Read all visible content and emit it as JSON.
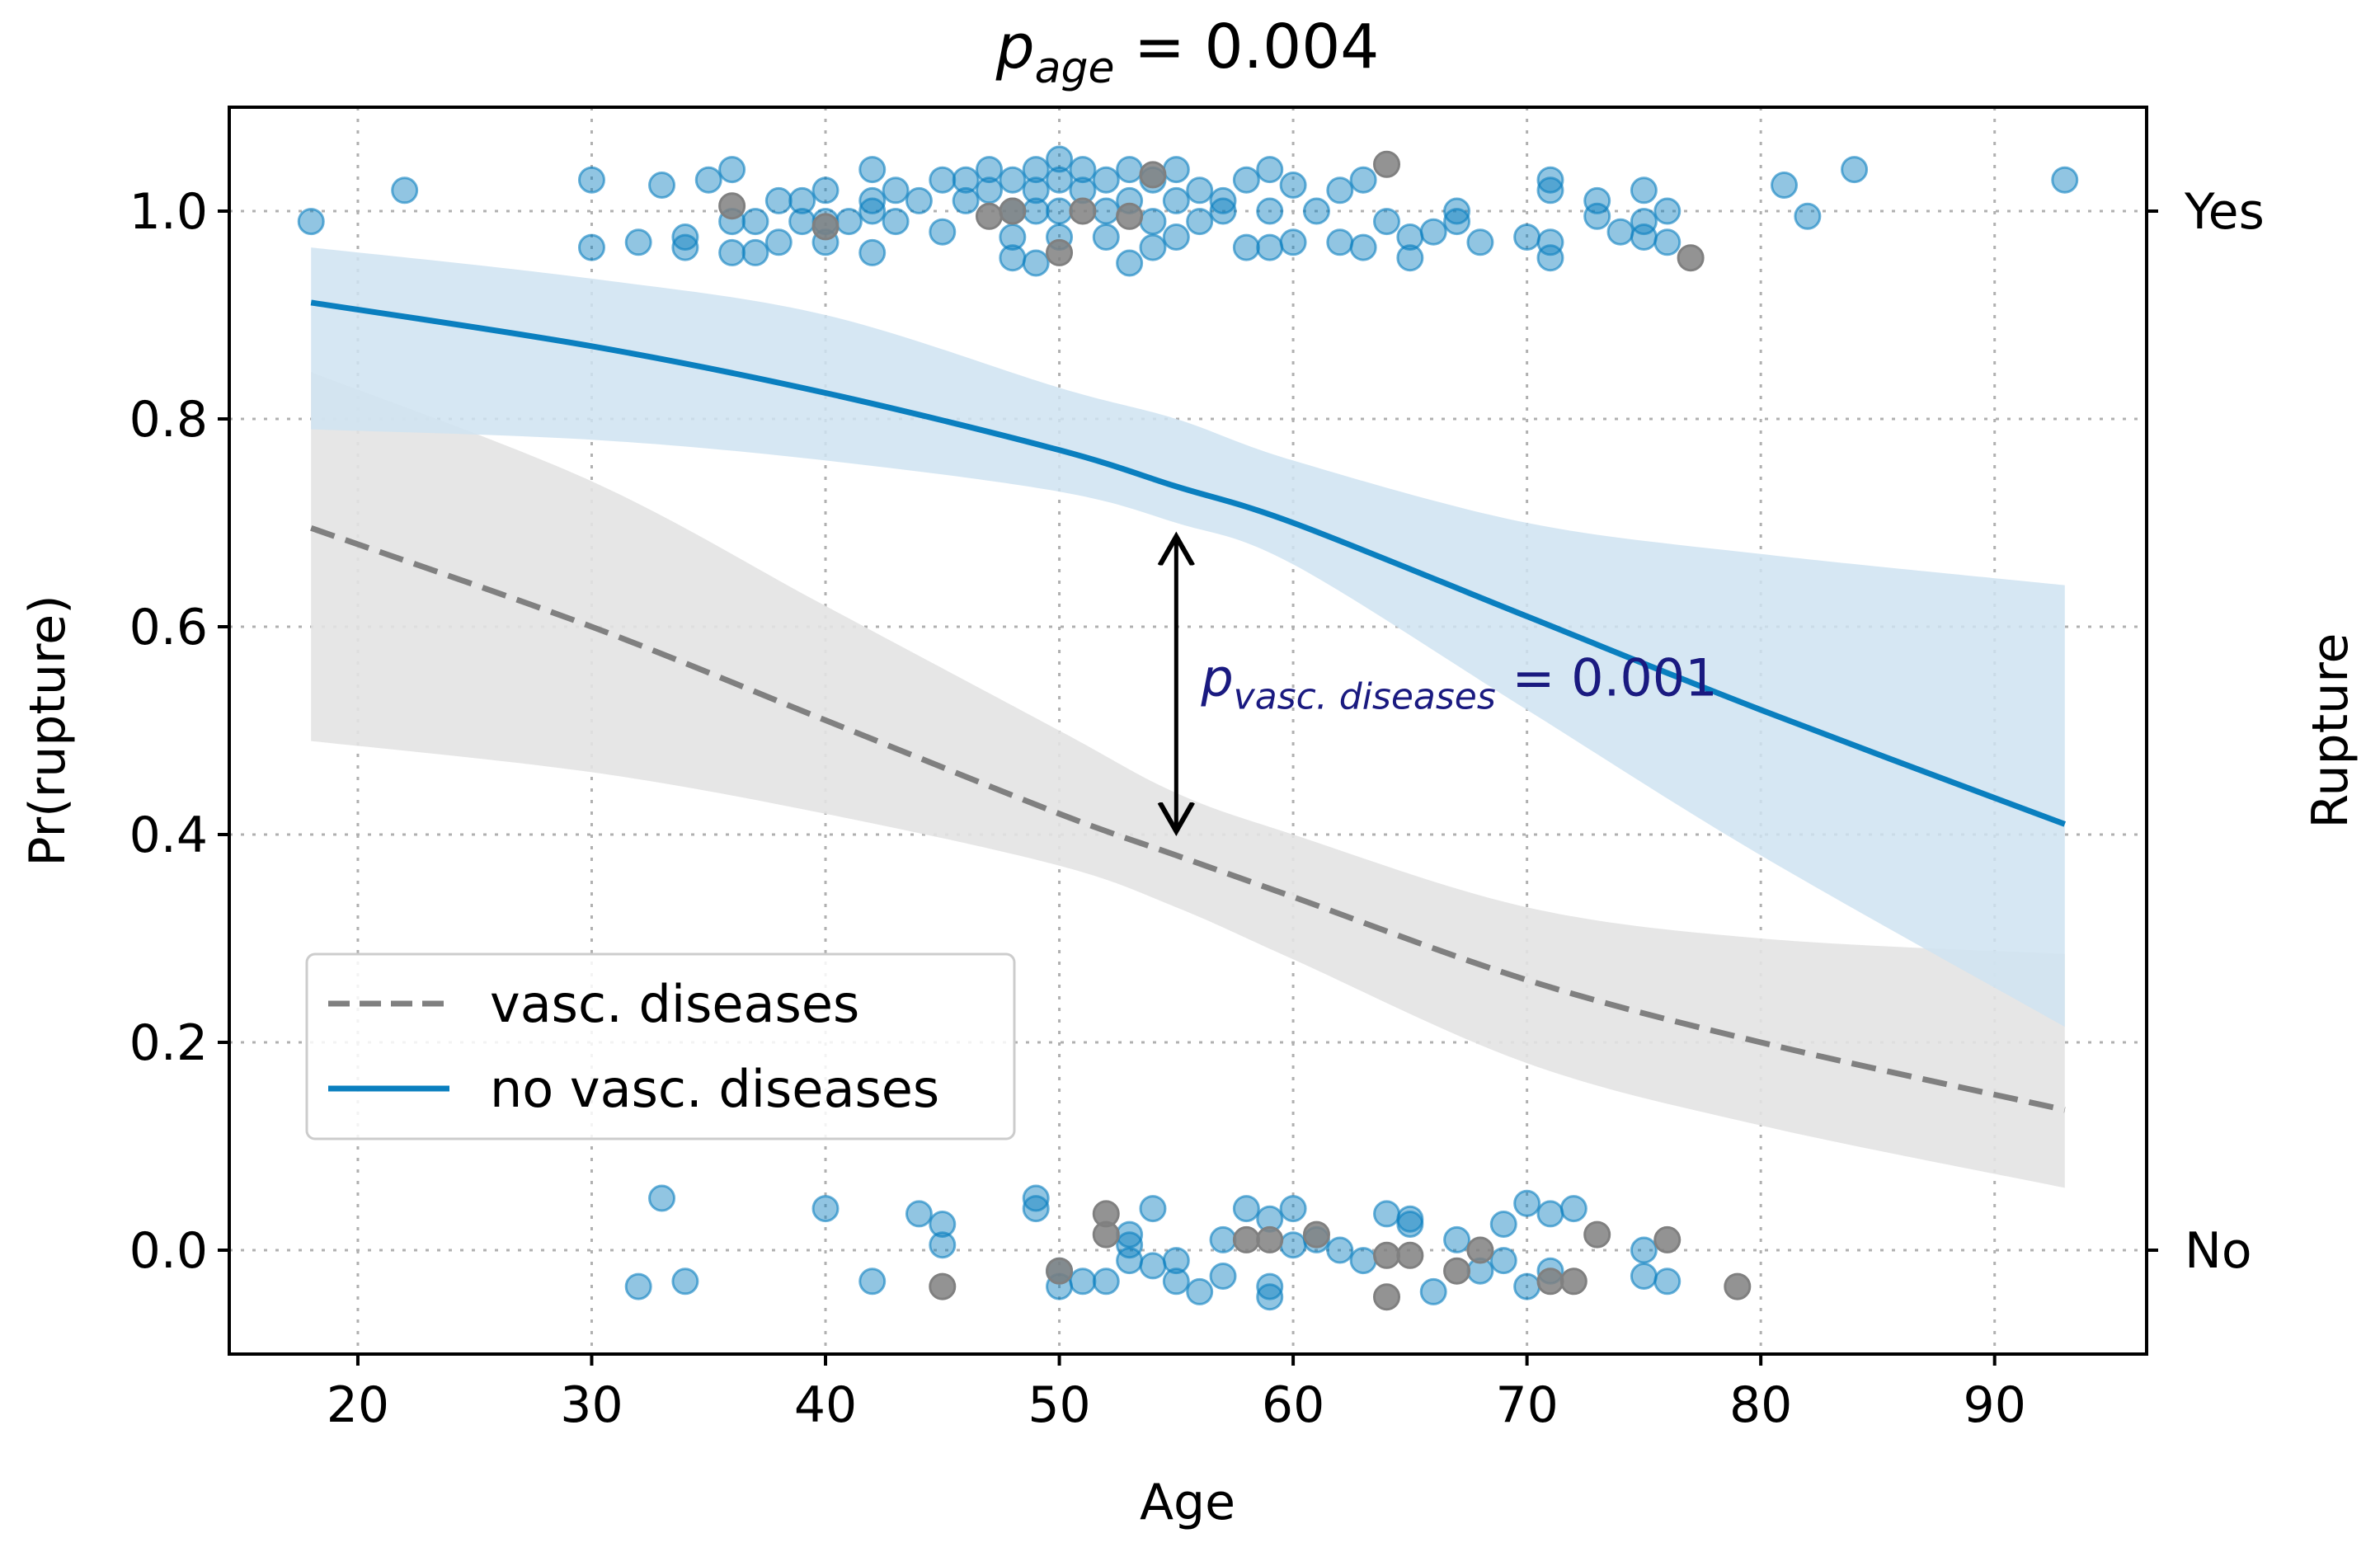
{
  "chart_data": {
    "type": "scatter",
    "title": {
      "symbol": "p",
      "subscript": "age",
      "rest": " = 0.004"
    },
    "xlabel": "Age",
    "ylabel": "Pr(rupture)",
    "y2label": "Rupture",
    "xlim": [
      14.5,
      96.5
    ],
    "ylim": [
      -0.1,
      1.1
    ],
    "xticks": [
      20,
      30,
      40,
      50,
      60,
      70,
      80,
      90
    ],
    "yticks": [
      0.0,
      0.2,
      0.4,
      0.6,
      0.8,
      1.0
    ],
    "ytick_labels": [
      "0.0",
      "0.2",
      "0.4",
      "0.6",
      "0.8",
      "1.0"
    ],
    "y2ticks": [
      {
        "value": 1.0,
        "label": "Yes"
      },
      {
        "value": 0.0,
        "label": "No"
      }
    ],
    "grid": true,
    "legend_position": "lower-left",
    "colors": {
      "no_vasc": "#0a7fbf",
      "vasc": "#808080",
      "no_vasc_band": "#cfe3f1",
      "vasc_band": "#e3e3e3"
    },
    "series": [
      {
        "name": "vasc. diseases",
        "style": "dashed",
        "x": [
          18,
          30,
          40,
          50,
          55,
          60,
          70,
          80,
          93
        ],
        "values": [
          0.695,
          0.6,
          0.51,
          0.42,
          0.38,
          0.34,
          0.26,
          0.2,
          0.135
        ],
        "ci_lower": [
          0.49,
          0.46,
          0.42,
          0.37,
          0.33,
          0.28,
          0.18,
          0.12,
          0.06
        ],
        "ci_upper": [
          0.845,
          0.74,
          0.62,
          0.5,
          0.44,
          0.4,
          0.33,
          0.3,
          0.285
        ]
      },
      {
        "name": "no vasc. diseases",
        "style": "solid",
        "x": [
          18,
          30,
          40,
          50,
          55,
          60,
          70,
          80,
          93
        ],
        "values": [
          0.912,
          0.87,
          0.825,
          0.77,
          0.735,
          0.7,
          0.61,
          0.52,
          0.41
        ],
        "ci_lower": [
          0.79,
          0.78,
          0.76,
          0.73,
          0.7,
          0.66,
          0.52,
          0.38,
          0.215
        ],
        "ci_upper": [
          0.965,
          0.935,
          0.9,
          0.83,
          0.8,
          0.76,
          0.7,
          0.67,
          0.64
        ]
      }
    ],
    "annotation": {
      "symbol": "p",
      "subscript": "vasc. diseases",
      "rest": " = 0.001",
      "x": 55,
      "y_from": 0.69,
      "y_to": 0.4
    },
    "points_no_vasc": [
      [
        18,
        0.99
      ],
      [
        22,
        1.02
      ],
      [
        30,
        1.03
      ],
      [
        30,
        0.965
      ],
      [
        32,
        0.97
      ],
      [
        33,
        1.025
      ],
      [
        34,
        0.975
      ],
      [
        34,
        0.965
      ],
      [
        35,
        1.03
      ],
      [
        36,
        1.04
      ],
      [
        36,
        0.99
      ],
      [
        36,
        0.96
      ],
      [
        37,
        0.96
      ],
      [
        37,
        0.99
      ],
      [
        38,
        1.01
      ],
      [
        38,
        0.97
      ],
      [
        39,
        1.01
      ],
      [
        39,
        0.99
      ],
      [
        40,
        1.02
      ],
      [
        40,
        0.97
      ],
      [
        40,
        0.99
      ],
      [
        41,
        0.99
      ],
      [
        42,
        1.04
      ],
      [
        42,
        1.01
      ],
      [
        42,
        1.0
      ],
      [
        42,
        0.96
      ],
      [
        43,
        1.02
      ],
      [
        43,
        0.99
      ],
      [
        44,
        1.01
      ],
      [
        45,
        1.03
      ],
      [
        45,
        0.98
      ],
      [
        46,
        1.03
      ],
      [
        46,
        1.01
      ],
      [
        47,
        1.04
      ],
      [
        47,
        1.02
      ],
      [
        48,
        1.0
      ],
      [
        48,
        0.975
      ],
      [
        48,
        0.955
      ],
      [
        48,
        1.03
      ],
      [
        49,
        1.04
      ],
      [
        49,
        1.0
      ],
      [
        49,
        0.95
      ],
      [
        49,
        1.02
      ],
      [
        50,
        1.05
      ],
      [
        50,
        1.03
      ],
      [
        50,
        1.0
      ],
      [
        50,
        0.975
      ],
      [
        51,
        1.04
      ],
      [
        51,
        1.02
      ],
      [
        52,
        1.0
      ],
      [
        52,
        1.03
      ],
      [
        52,
        0.975
      ],
      [
        53,
        1.01
      ],
      [
        53,
        0.95
      ],
      [
        53,
        1.04
      ],
      [
        54,
        1.03
      ],
      [
        54,
        0.99
      ],
      [
        54,
        0.965
      ],
      [
        55,
        1.04
      ],
      [
        55,
        1.01
      ],
      [
        55,
        0.975
      ],
      [
        56,
        1.02
      ],
      [
        56,
        0.99
      ],
      [
        57,
        1.0
      ],
      [
        57,
        1.01
      ],
      [
        58,
        0.965
      ],
      [
        58,
        1.03
      ],
      [
        59,
        1.04
      ],
      [
        59,
        1.0
      ],
      [
        59,
        0.965
      ],
      [
        60,
        1.025
      ],
      [
        60,
        0.97
      ],
      [
        61,
        1.0
      ],
      [
        62,
        1.02
      ],
      [
        62,
        0.97
      ],
      [
        63,
        1.03
      ],
      [
        63,
        0.965
      ],
      [
        64,
        0.99
      ],
      [
        65,
        0.955
      ],
      [
        65,
        0.975
      ],
      [
        66,
        0.98
      ],
      [
        67,
        1.0
      ],
      [
        67,
        0.99
      ],
      [
        68,
        0.97
      ],
      [
        70,
        0.975
      ],
      [
        71,
        1.03
      ],
      [
        71,
        1.02
      ],
      [
        71,
        0.97
      ],
      [
        71,
        0.955
      ],
      [
        73,
        1.01
      ],
      [
        73,
        0.995
      ],
      [
        74,
        0.98
      ],
      [
        75,
        1.02
      ],
      [
        75,
        0.99
      ],
      [
        75,
        0.975
      ],
      [
        76,
        1.0
      ],
      [
        76,
        0.97
      ],
      [
        81,
        1.025
      ],
      [
        82,
        0.995
      ],
      [
        84,
        1.04
      ],
      [
        93,
        1.03
      ],
      [
        32,
        -0.035
      ],
      [
        33,
        0.05
      ],
      [
        34,
        -0.03
      ],
      [
        40,
        0.04
      ],
      [
        42,
        -0.03
      ],
      [
        44,
        0.035
      ],
      [
        45,
        0.025
      ],
      [
        45,
        0.005
      ],
      [
        49,
        0.05
      ],
      [
        49,
        0.04
      ],
      [
        50,
        -0.02
      ],
      [
        50,
        -0.035
      ],
      [
        51,
        -0.03
      ],
      [
        52,
        -0.03
      ],
      [
        53,
        0.015
      ],
      [
        53,
        0.005
      ],
      [
        53,
        -0.01
      ],
      [
        54,
        0.04
      ],
      [
        54,
        -0.015
      ],
      [
        55,
        -0.01
      ],
      [
        55,
        -0.03
      ],
      [
        56,
        -0.04
      ],
      [
        57,
        -0.025
      ],
      [
        57,
        0.01
      ],
      [
        58,
        0.04
      ],
      [
        59,
        0.03
      ],
      [
        59,
        -0.035
      ],
      [
        59,
        -0.045
      ],
      [
        60,
        0.04
      ],
      [
        60,
        0.005
      ],
      [
        61,
        0.01
      ],
      [
        62,
        0.0
      ],
      [
        63,
        -0.01
      ],
      [
        64,
        0.035
      ],
      [
        65,
        0.03
      ],
      [
        65,
        0.025
      ],
      [
        66,
        -0.04
      ],
      [
        67,
        0.01
      ],
      [
        68,
        -0.02
      ],
      [
        69,
        0.025
      ],
      [
        69,
        -0.01
      ],
      [
        70,
        0.045
      ],
      [
        70,
        -0.035
      ],
      [
        71,
        0.035
      ],
      [
        71,
        -0.02
      ],
      [
        72,
        0.04
      ],
      [
        75,
        0.0
      ],
      [
        75,
        -0.025
      ],
      [
        76,
        -0.03
      ]
    ],
    "points_vasc": [
      [
        36,
        1.005
      ],
      [
        40,
        0.985
      ],
      [
        47,
        0.995
      ],
      [
        48,
        1.0
      ],
      [
        50,
        0.96
      ],
      [
        51,
        1.0
      ],
      [
        53,
        0.995
      ],
      [
        54,
        1.035
      ],
      [
        64,
        1.045
      ],
      [
        77,
        0.955
      ],
      [
        45,
        -0.035
      ],
      [
        50,
        -0.02
      ],
      [
        52,
        0.035
      ],
      [
        52,
        0.015
      ],
      [
        58,
        0.01
      ],
      [
        59,
        0.01
      ],
      [
        61,
        0.015
      ],
      [
        64,
        -0.045
      ],
      [
        64,
        -0.005
      ],
      [
        65,
        -0.005
      ],
      [
        67,
        -0.02
      ],
      [
        68,
        0.0
      ],
      [
        71,
        -0.03
      ],
      [
        72,
        -0.03
      ],
      [
        73,
        0.015
      ],
      [
        76,
        0.01
      ],
      [
        79,
        -0.035
      ]
    ]
  }
}
